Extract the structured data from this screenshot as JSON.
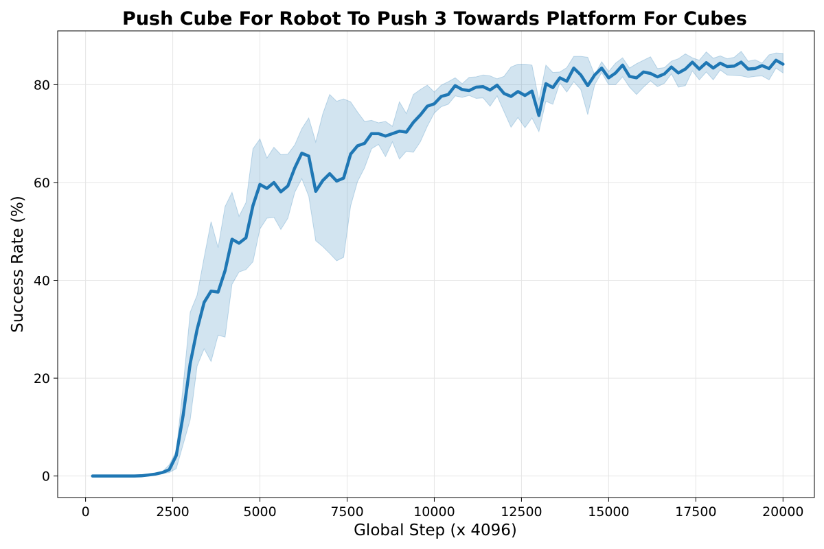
{
  "chart_data": {
    "type": "line",
    "title": "Push Cube For Robot To Push 3 Towards Platform For Cubes",
    "xlabel": "Global Step (x 4096)",
    "ylabel": "Success Rate (%)",
    "xlim": [
      -800,
      20900
    ],
    "ylim": [
      -4.4,
      91
    ],
    "xticks": [
      0,
      2500,
      5000,
      7500,
      10000,
      12500,
      15000,
      17500,
      20000
    ],
    "yticks": [
      0,
      20,
      40,
      60,
      80
    ],
    "grid": true,
    "colors": {
      "line": "#1f77b4",
      "band": "#1f77b4"
    },
    "series": [
      {
        "x": [
          200,
          400,
          600,
          800,
          1000,
          1200,
          1400,
          1600,
          1800,
          2000,
          2200,
          2400,
          2600,
          2800,
          3000,
          3200,
          3400,
          3600,
          3800,
          4000,
          4200,
          4400,
          4600,
          4800,
          5000,
          5200,
          5400,
          5600,
          5800,
          6000,
          6200,
          6400,
          6600,
          6800,
          7000,
          7200,
          7400,
          7600,
          7800,
          8000,
          8200,
          8400,
          8600,
          8800,
          9000,
          9200,
          9400,
          9600,
          9800,
          10000,
          10200,
          10400,
          10600,
          10800,
          11000,
          11200,
          11400,
          11600,
          11800,
          12000,
          12200,
          12400,
          12600,
          12800,
          13000,
          13200,
          13400,
          13600,
          13800,
          14000,
          14200,
          14400,
          14600,
          14800,
          15000,
          15200,
          15400,
          15600,
          15800,
          16000,
          16200,
          16400,
          16600,
          16800,
          17000,
          17200,
          17400,
          17600,
          17800,
          18000,
          18200,
          18400,
          18600,
          18800,
          19000,
          19200,
          19400,
          19600,
          19800,
          20000
        ],
        "values": [
          0,
          0,
          0,
          0,
          0,
          0,
          0,
          0.05,
          0.2,
          0.4,
          0.7,
          1.3,
          4.2,
          12.5,
          23,
          30,
          35.5,
          37.8,
          37.6,
          42,
          48.4,
          47.6,
          48.7,
          55.3,
          59.6,
          58.8,
          60,
          58.1,
          59.3,
          63,
          66,
          65.4,
          58.2,
          60.4,
          61.8,
          60.3,
          60.9,
          65.8,
          67.5,
          68,
          70,
          70,
          69.5,
          70,
          70.5,
          70.3,
          72.3,
          73.8,
          75.6,
          76.1,
          77.6,
          78,
          79.8,
          79,
          78.8,
          79.5,
          79.6,
          78.9,
          79.9,
          78.2,
          77.6,
          78.6,
          77.8,
          78.7,
          73.7,
          80.2,
          79.4,
          81.4,
          80.7,
          83.4,
          82,
          79.8,
          82,
          83.4,
          81.4,
          82.4,
          84,
          81.7,
          81.4,
          82.6,
          82.3,
          81.6,
          82.2,
          83.6,
          82.4,
          83.2,
          84.6,
          83.2,
          84.5,
          83.4,
          84.4,
          83.7,
          83.8,
          84.6,
          83.2,
          83.3,
          83.9,
          83.3,
          85,
          84.2
        ],
        "lower": [
          0,
          0,
          0,
          0,
          0,
          0,
          0,
          0,
          0.1,
          0.3,
          0.5,
          0.7,
          1.5,
          6.5,
          11.5,
          22.5,
          26,
          23.4,
          28.8,
          28.4,
          39.2,
          41.7,
          42.2,
          43.8,
          50.5,
          52.7,
          52.9,
          50.4,
          52.7,
          58,
          60.8,
          57.2,
          48.1,
          46.9,
          45.5,
          44,
          44.7,
          55.2,
          60.2,
          63,
          66.9,
          67.8,
          65.3,
          68.3,
          64.8,
          66.4,
          66.2,
          68.3,
          71.5,
          74.2,
          75.5,
          76,
          77.7,
          77.4,
          77.8,
          77.2,
          77.3,
          75.6,
          77.7,
          74.5,
          71.3,
          73.3,
          71.2,
          73.2,
          70.4,
          76.6,
          76,
          80.4,
          78.5,
          80.6,
          79,
          73.9,
          80,
          82.5,
          80,
          80,
          81.6,
          79.5,
          78,
          79.5,
          80.8,
          79.6,
          80.3,
          82.2,
          79.5,
          79.8,
          82.8,
          81,
          82.6,
          81,
          83,
          82,
          81.9,
          81.8,
          81.5,
          81.7,
          81.8,
          81,
          83.4,
          82.4
        ],
        "upper": [
          0,
          0,
          0,
          0,
          0,
          0,
          0,
          0.1,
          0.3,
          0.6,
          0.9,
          2.3,
          5.1,
          18.5,
          33.5,
          37,
          44.7,
          52,
          46.7,
          55.1,
          58,
          53.1,
          55.9,
          66.9,
          68.9,
          65,
          67.2,
          65.7,
          65.8,
          67.7,
          71,
          73.2,
          68.3,
          74,
          78,
          76.6,
          77.1,
          76.5,
          74.4,
          72.5,
          72.7,
          72.2,
          72.5,
          71.5,
          76.5,
          74.1,
          78,
          79,
          79.9,
          78.5,
          79.9,
          80.6,
          81.4,
          80.2,
          81.5,
          81.6,
          82,
          81.8,
          81.2,
          81.7,
          83.6,
          84.2,
          84.2,
          84,
          76.8,
          84,
          82.5,
          82.6,
          83.5,
          85.8,
          85.8,
          85.6,
          82,
          84.7,
          82.7,
          84.4,
          85.5,
          83.4,
          84.3,
          85,
          85.7,
          83.3,
          83.5,
          84.8,
          85.3,
          86.3,
          85.5,
          85,
          86.7,
          85.4,
          85.9,
          85.3,
          85.6,
          86.8,
          84.8,
          85.1,
          84.4,
          86.1,
          86.5,
          86.4
        ]
      }
    ]
  }
}
